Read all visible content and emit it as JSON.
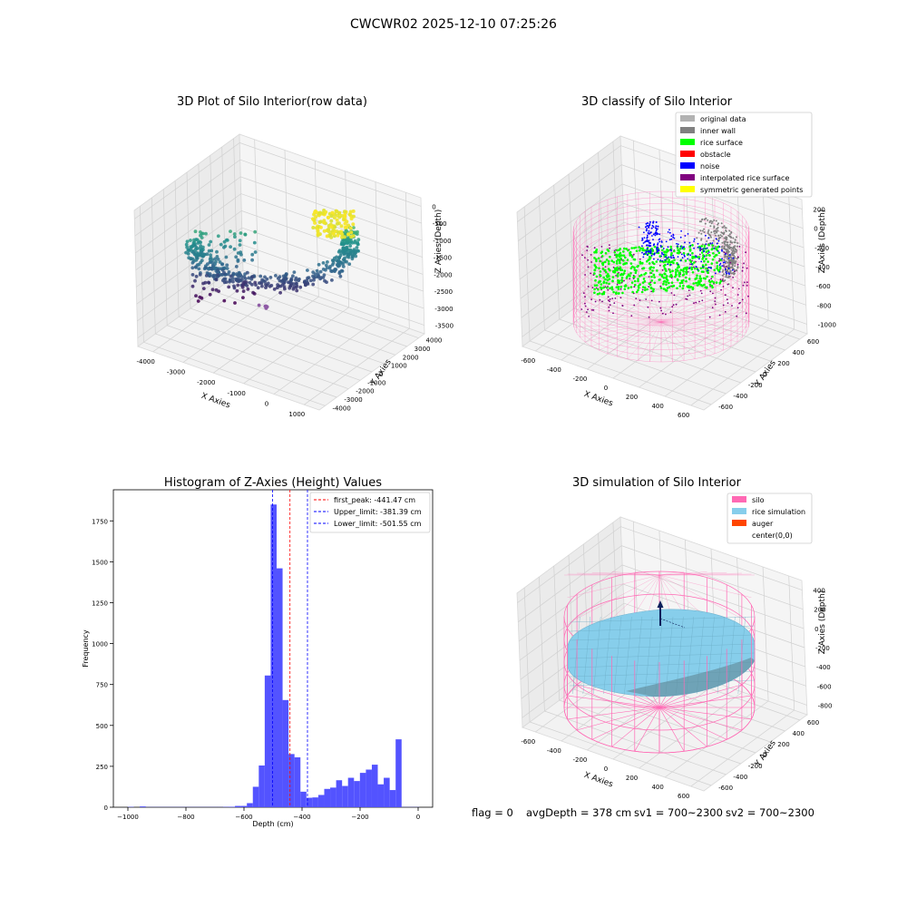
{
  "figure": {
    "suptitle": "CWCWR02 2025-12-10 07:25:26",
    "footer": {
      "flag": "flag = 0",
      "avg_depth": "avgDepth = 378 cm",
      "sv1": "sv1 = 700~2300",
      "sv2": "sv2 = 700~2300"
    }
  },
  "colors": {
    "silo_pink": "#ff69b4",
    "rice_sky": "#87ceeb",
    "auger": "#ff4500",
    "original": "#b2b2b2",
    "inner_wall": "#808080",
    "rice_surface": "#00ff00",
    "obstacle": "#ff0000",
    "noise": "#0000ff",
    "interpolated": "#800080",
    "symmetric": "#ffff00",
    "hist_bar": "#5050ff"
  },
  "chart_data": [
    {
      "type": "scatter",
      "title": "3D Plot of Silo Interior(row data)",
      "xlabel": "X Axies",
      "ylabel": "Y Axies",
      "zlabel": "Z Axies (Depth)",
      "x_ticks": [
        "-4000",
        "-3000",
        "-2000",
        "-1000",
        "0",
        "1000"
      ],
      "y_ticks": [
        "-4000",
        "-3000",
        "-2000",
        "-1000",
        "0",
        "1000",
        "2000",
        "3000",
        "4000"
      ],
      "z_ticks": [
        "0",
        "-500",
        "-1000",
        "-1500",
        "-2000",
        "-2500",
        "-3000",
        "-3500"
      ],
      "grid": true,
      "projection": "3d"
    },
    {
      "type": "scatter",
      "title": "3D classify of Silo Interior",
      "xlabel": "X Axies",
      "ylabel": "Y Axies",
      "zlabel": "Z Axies (Depth)",
      "x_ticks": [
        "-600",
        "-400",
        "-200",
        "0",
        "200",
        "400",
        "600"
      ],
      "y_ticks": [
        "-600",
        "-400",
        "-200",
        "0",
        "200",
        "400",
        "600"
      ],
      "z_ticks": [
        "200",
        "0",
        "-200",
        "-400",
        "-600",
        "-800",
        "-1000"
      ],
      "legend": [
        {
          "label": "original data",
          "color": "#b2b2b2"
        },
        {
          "label": "inner wall",
          "color": "#808080"
        },
        {
          "label": "rice surface",
          "color": "#00ff00"
        },
        {
          "label": "obstacle",
          "color": "#ff0000"
        },
        {
          "label": "noise",
          "color": "#0000ff"
        },
        {
          "label": "interpolated rice surface",
          "color": "#800080"
        },
        {
          "label": "symmetric generated points",
          "color": "#ffff00"
        }
      ],
      "legend_placement": "top-right",
      "grid": true,
      "projection": "3d"
    },
    {
      "type": "bar",
      "title": "Histogram of Z-Axies (Height) Values",
      "xlabel": "Depth (cm)",
      "ylabel": "Frequency",
      "xlim": [
        -1050,
        50
      ],
      "ylim": [
        0,
        1940
      ],
      "x_ticks": [
        -1000,
        -800,
        -600,
        -400,
        -200,
        0
      ],
      "x_tick_labels": [
        "−1000",
        "−800",
        "−600",
        "−400",
        "−200",
        "0"
      ],
      "y_ticks": [
        0,
        250,
        500,
        750,
        1000,
        1250,
        1500,
        1750
      ],
      "y_tick_labels": [
        "0",
        "250",
        "500",
        "750",
        "1000",
        "1250",
        "1500",
        "1750"
      ],
      "bin_width": 20.5,
      "bin_start": [
        -1000,
        -959,
        -938.5,
        -918,
        -897.5,
        -877,
        -856.5,
        -836,
        -815.5,
        -795,
        -774.5,
        -754,
        -733.5,
        -713,
        -692.5,
        -672,
        -651.5,
        -631,
        -610.5,
        -590,
        -569.5,
        -549,
        -528.5,
        -508,
        -487.5,
        -467,
        -446.5,
        -426,
        -405.5,
        -385,
        -364.5,
        -344,
        -323.5,
        -303,
        -282.5,
        -262,
        -241.5,
        -221,
        -200.5,
        -180,
        -159.5,
        -139,
        -118.5,
        -98,
        -77.5,
        -57,
        -36.5,
        -16
      ],
      "counts": [
        2,
        5,
        1,
        1,
        1,
        1,
        1,
        1,
        1,
        1,
        1,
        1,
        1,
        1,
        1,
        2,
        3,
        8,
        8,
        25,
        125,
        255,
        805,
        1850,
        1460,
        655,
        325,
        305,
        95,
        58,
        60,
        75,
        112,
        120,
        165,
        130,
        180,
        160,
        210,
        230,
        260,
        140,
        180,
        105,
        415,
        1,
        1,
        1
      ],
      "vlines": [
        {
          "value": -441.47,
          "color": "#ff0000",
          "label": "first_peak: -441.47 cm"
        },
        {
          "value": -381.39,
          "color": "#0000ff",
          "label": "Upper_limit: -381.39 cm"
        },
        {
          "value": -501.55,
          "color": "#0000ff",
          "label": "Lower_limit: -501.55 cm"
        }
      ],
      "legend_placement": "top-right"
    },
    {
      "type": "area",
      "title": "3D simulation of Silo Interior",
      "xlabel": "X Axies",
      "ylabel": "Y Axies",
      "zlabel": "Z Axies (Depth)",
      "x_ticks": [
        "-600",
        "-400",
        "-200",
        "0",
        "200",
        "400",
        "600"
      ],
      "y_ticks": [
        "-600",
        "-400",
        "-200",
        "0",
        "200",
        "400",
        "600"
      ],
      "z_ticks": [
        "400",
        "200",
        "0",
        "-200",
        "-400",
        "-600",
        "-800"
      ],
      "legend": [
        {
          "label": "silo",
          "color": "#ff69b4"
        },
        {
          "label": "rice simulation",
          "color": "#87ceeb"
        },
        {
          "label": "auger",
          "color": "#ff4500"
        },
        {
          "label": "center(0,0)",
          "color": ""
        }
      ],
      "legend_placement": "top-right",
      "grid": true,
      "projection": "3d"
    }
  ]
}
